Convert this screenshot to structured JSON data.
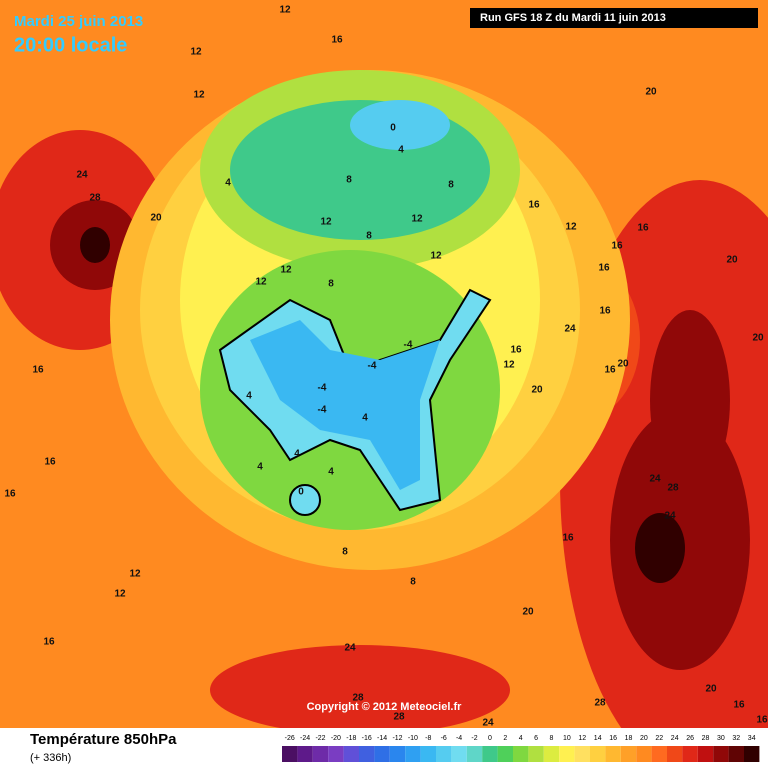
{
  "header": {
    "date": "Mardi 25 juin 2013",
    "time": "20:00 locale",
    "run": "Run GFS 18 Z du Mardi 11 juin 2013"
  },
  "copyright": "Copyright © 2012 Meteociel.fr",
  "footer": {
    "title": "Température 850hPa",
    "lead": "(+ 336h)"
  },
  "scale": {
    "values": [
      -26,
      -24,
      -22,
      -20,
      -18,
      -16,
      -14,
      -12,
      -10,
      -8,
      -6,
      -4,
      -2,
      0,
      2,
      4,
      6,
      8,
      10,
      12,
      14,
      16,
      18,
      20,
      22,
      24,
      26,
      28,
      30,
      32,
      34
    ],
    "colors": [
      "#4b0f63",
      "#5e1a8a",
      "#6e2ba8",
      "#7a3dc2",
      "#6050d8",
      "#4060e0",
      "#2f6fe6",
      "#2a86ee",
      "#2fa0f2",
      "#3ab8f2",
      "#55ccf0",
      "#70dcf0",
      "#5fd6c8",
      "#3fc98a",
      "#4fd05a",
      "#7fd840",
      "#b0e040",
      "#dcec40",
      "#fff050",
      "#ffe060",
      "#ffd040",
      "#ffb830",
      "#ffa028",
      "#ff8a20",
      "#ff6a20",
      "#f04818",
      "#e02818",
      "#c01010",
      "#900808",
      "#600404",
      "#300000"
    ]
  },
  "contour_labels": [
    12,
    16,
    12,
    12,
    20,
    0,
    4,
    24,
    28,
    4,
    8,
    8,
    16,
    20,
    12,
    12,
    12,
    8,
    16,
    16,
    12,
    20,
    12,
    12,
    8,
    16,
    16,
    24,
    -4,
    -4,
    -4,
    -4,
    4,
    16,
    12,
    16,
    20,
    20,
    20,
    16,
    4,
    4,
    4,
    4,
    0,
    16,
    16,
    24,
    28,
    24,
    8,
    8,
    16,
    12,
    12,
    20,
    16,
    24,
    28,
    28,
    28,
    20,
    24,
    16,
    16
  ]
}
